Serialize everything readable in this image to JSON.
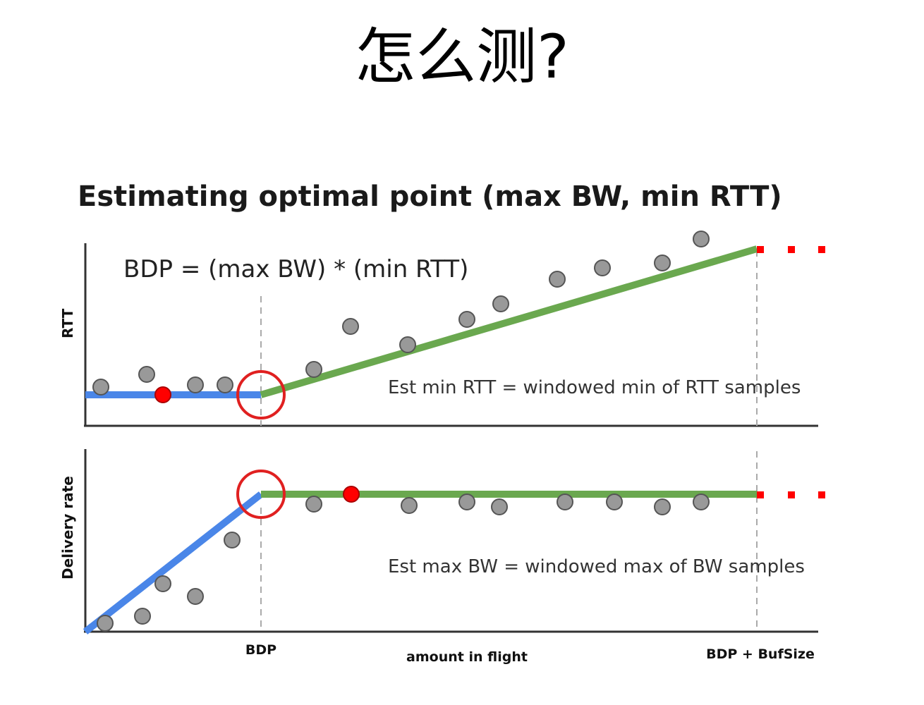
{
  "slide": {
    "title": "怎么测?"
  },
  "figure": {
    "title": "Estimating optimal point (max BW, min RTT)",
    "formula": "BDP = (max BW) * (min RTT)",
    "rtt_panel": {
      "ylabel": "RTT",
      "note": "Est min RTT = windowed min of RTT samples"
    },
    "rate_panel": {
      "ylabel": "Delivery rate",
      "note": "Est max BW = windowed max of BW samples"
    },
    "x_axis": {
      "label": "amount in flight",
      "ticks": [
        "BDP",
        "BDP + BufSize"
      ]
    }
  },
  "colors": {
    "blue_line": "#4a86e8",
    "green_line": "#6aa84f",
    "sample_fill": "#999999",
    "highlight_sample": "#ff0000",
    "optimum_circle": "#e02020",
    "dots": "#ff0000",
    "guide": "#aaaaaa",
    "axis": "#333333"
  }
}
